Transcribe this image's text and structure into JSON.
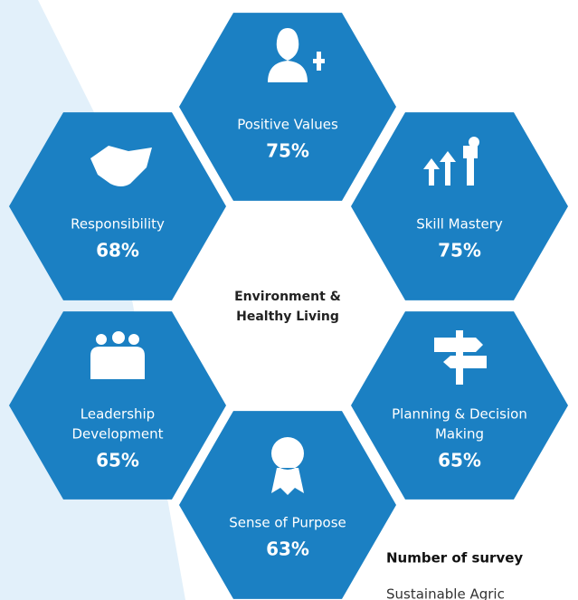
{
  "center_label": [
    "Environment &",
    "Healthy Living"
  ],
  "hexagons": [
    {
      "label": [
        "Positive Values"
      ],
      "value": "75%"
    },
    {
      "label": [
        "Responsibility"
      ],
      "value": "68%"
    },
    {
      "label": [
        "Skill Mastery"
      ],
      "value": "75%"
    },
    {
      "label": [
        "Leadership",
        "Development"
      ],
      "value": "65%"
    },
    {
      "label": [
        "Planning & Decision",
        "Making"
      ],
      "value": "65%"
    },
    {
      "label": [
        "Sense of Purpose"
      ],
      "value": "63%"
    }
  ],
  "footer": {
    "heading": "Number of survey",
    "line": "Sustainable Agric"
  }
}
